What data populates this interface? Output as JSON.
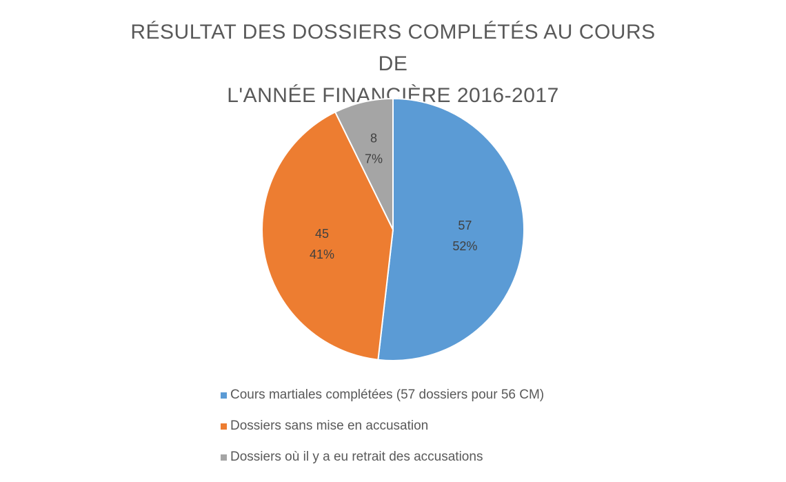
{
  "chart_data": {
    "type": "pie",
    "title_lines": [
      "RÉSULTAT DES DOSSIERS COMPLÉTÉS AU COURS DE",
      "L'ANNÉE FINANCIÈRE 2016-2017"
    ],
    "slices": [
      {
        "label": "Cours martiales complétées (57 dossiers pour 56 CM)",
        "value": 57,
        "percent_label": "52%",
        "color": "#5B9BD5"
      },
      {
        "label": "Dossiers sans mise en accusation",
        "value": 45,
        "percent_label": "41%",
        "color": "#ED7D31"
      },
      {
        "label": "Dossiers où il y a eu retrait des accusations",
        "value": 8,
        "percent_label": "7%",
        "color": "#A5A5A5"
      }
    ],
    "start_angle": "12 o'clock, clockwise",
    "legend_position": "bottom",
    "data_labels": "value and percent inside slices"
  }
}
